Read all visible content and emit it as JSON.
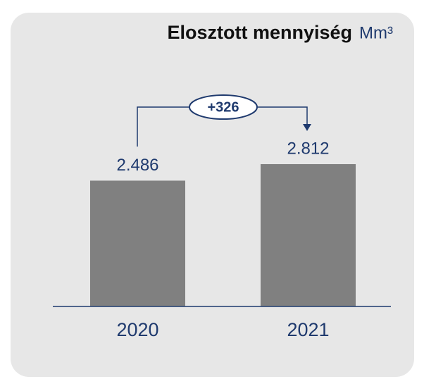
{
  "chart_data": {
    "type": "bar",
    "title": "Elosztott mennyiség",
    "unit": "Mm³",
    "categories": [
      "2020",
      "2021"
    ],
    "values": [
      2486,
      2812
    ],
    "value_labels": [
      "2.486",
      "2.812"
    ],
    "color": "#808080",
    "annotation": "+326"
  }
}
